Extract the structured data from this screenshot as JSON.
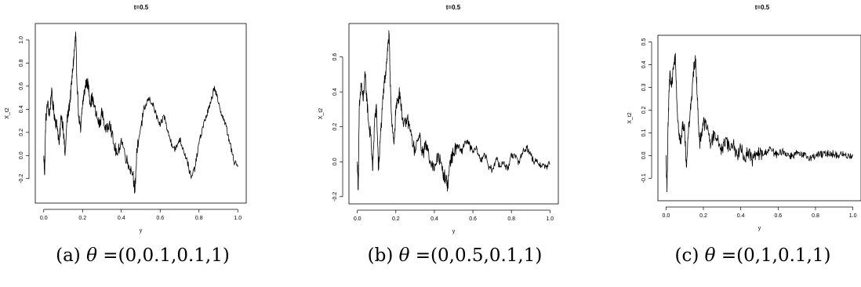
{
  "chart_data": [
    {
      "type": "line",
      "title": "t=0.5",
      "xlabel": "y",
      "ylabel": "X_t2",
      "caption_prefix": "(a)",
      "caption_theta": "θ",
      "caption_value": " =(0,0.1,0.1,1)",
      "xlim": [
        0,
        1
      ],
      "ylim": [
        -0.35,
        1.08
      ],
      "x_ticks": [
        "0.0",
        "0.2",
        "0.4",
        "0.6",
        "0.8",
        "1.0"
      ],
      "y_ticks": [
        "-0.2",
        "0.0",
        "0.2",
        "0.4",
        "0.6",
        "0.8",
        "1.0"
      ],
      "x_tick_values": [
        0,
        0.2,
        0.4,
        0.6,
        0.8,
        1.0
      ],
      "y_tick_values": [
        -0.2,
        0,
        0.2,
        0.4,
        0.6,
        0.8,
        1.0
      ],
      "noise": 0.055,
      "series": [
        {
          "x": [
            0.0,
            0.005,
            0.01,
            0.02,
            0.03,
            0.04,
            0.05,
            0.06,
            0.07,
            0.08,
            0.09,
            0.1,
            0.11,
            0.12,
            0.13,
            0.14,
            0.15,
            0.16,
            0.165,
            0.17,
            0.18,
            0.19,
            0.2,
            0.21,
            0.22,
            0.23,
            0.24,
            0.25,
            0.27,
            0.29,
            0.3,
            0.32,
            0.34,
            0.36,
            0.38,
            0.4,
            0.42,
            0.44,
            0.46,
            0.47,
            0.48,
            0.5,
            0.52,
            0.54,
            0.56,
            0.58,
            0.6,
            0.62,
            0.64,
            0.66,
            0.68,
            0.7,
            0.72,
            0.74,
            0.76,
            0.78,
            0.8,
            0.82,
            0.84,
            0.86,
            0.88,
            0.9,
            0.92,
            0.94,
            0.96,
            0.98,
            1.0
          ],
          "y": [
            0.0,
            -0.16,
            0.3,
            0.45,
            0.35,
            0.55,
            0.4,
            0.3,
            0.25,
            0.1,
            0.35,
            0.25,
            0.0,
            0.3,
            0.4,
            0.55,
            0.75,
            0.95,
            1.05,
            0.7,
            0.35,
            0.2,
            0.45,
            0.55,
            0.65,
            0.6,
            0.45,
            0.5,
            0.35,
            0.25,
            0.4,
            0.2,
            0.3,
            0.1,
            0.0,
            0.15,
            0.0,
            -0.1,
            -0.15,
            -0.32,
            0.05,
            0.25,
            0.4,
            0.5,
            0.45,
            0.35,
            0.25,
            0.35,
            0.2,
            0.1,
            0.05,
            0.15,
            0.05,
            -0.05,
            -0.2,
            -0.1,
            0.1,
            0.25,
            0.35,
            0.45,
            0.6,
            0.45,
            0.35,
            0.25,
            0.1,
            -0.05,
            -0.1
          ]
        }
      ]
    },
    {
      "type": "line",
      "title": "t=0.5",
      "xlabel": "y",
      "ylabel": "X_t2",
      "caption_prefix": "(b)",
      "caption_theta": "θ",
      "caption_value": " =(0,0.5,0.1,1)",
      "xlim": [
        0,
        1
      ],
      "ylim": [
        -0.2,
        0.75
      ],
      "x_ticks": [
        "0.0",
        "0.2",
        "0.4",
        "0.6",
        "0.8",
        "1.0"
      ],
      "y_ticks": [
        "-0.2",
        "0.0",
        "0.2",
        "0.4",
        "0.6"
      ],
      "x_tick_values": [
        0,
        0.2,
        0.4,
        0.6,
        0.8,
        1.0
      ],
      "y_tick_values": [
        -0.2,
        0,
        0.2,
        0.4,
        0.6
      ],
      "noise": 0.04,
      "series": [
        {
          "x": [
            0.0,
            0.005,
            0.01,
            0.02,
            0.03,
            0.04,
            0.05,
            0.06,
            0.07,
            0.08,
            0.09,
            0.1,
            0.11,
            0.12,
            0.13,
            0.14,
            0.15,
            0.16,
            0.165,
            0.17,
            0.18,
            0.19,
            0.2,
            0.21,
            0.22,
            0.23,
            0.24,
            0.26,
            0.28,
            0.3,
            0.32,
            0.34,
            0.36,
            0.38,
            0.4,
            0.42,
            0.44,
            0.46,
            0.47,
            0.48,
            0.5,
            0.52,
            0.54,
            0.56,
            0.58,
            0.6,
            0.62,
            0.64,
            0.66,
            0.68,
            0.7,
            0.72,
            0.74,
            0.76,
            0.78,
            0.8,
            0.82,
            0.84,
            0.86,
            0.88,
            0.9,
            0.92,
            0.94,
            0.96,
            0.98,
            1.0
          ],
          "y": [
            0.0,
            -0.16,
            0.3,
            0.45,
            0.35,
            0.5,
            0.35,
            0.2,
            0.15,
            -0.05,
            0.25,
            0.3,
            -0.05,
            0.15,
            0.3,
            0.45,
            0.55,
            0.68,
            0.72,
            0.5,
            0.2,
            0.1,
            0.3,
            0.35,
            0.4,
            0.3,
            0.2,
            0.25,
            0.15,
            0.05,
            0.15,
            0.05,
            0.1,
            0.0,
            -0.05,
            0.05,
            -0.05,
            -0.1,
            -0.14,
            0.0,
            0.05,
            0.1,
            0.05,
            0.12,
            0.1,
            0.05,
            0.08,
            0.0,
            0.05,
            -0.02,
            -0.05,
            0.02,
            -0.03,
            0.0,
            -0.05,
            0.05,
            0.02,
            0.0,
            0.06,
            0.08,
            0.04,
            0.0,
            -0.01,
            -0.02,
            -0.03,
            -0.01
          ]
        }
      ]
    },
    {
      "type": "line",
      "title": "t=0.5",
      "xlabel": "y",
      "ylabel": "X_t2",
      "caption_prefix": "(c)",
      "caption_theta": "θ",
      "caption_value": " =(0,1,0.1,1)",
      "xlim": [
        0,
        1
      ],
      "ylim": [
        -0.17,
        0.5
      ],
      "x_ticks": [
        "0.0",
        "0.2",
        "0.4",
        "0.6",
        "0.8",
        "1.0"
      ],
      "y_ticks": [
        "-0.1",
        "0.0",
        "0.1",
        "0.2",
        "0.3",
        "0.4",
        "0.5"
      ],
      "x_tick_values": [
        0,
        0.2,
        0.4,
        0.6,
        0.8,
        1.0
      ],
      "y_tick_values": [
        -0.1,
        0,
        0.1,
        0.2,
        0.3,
        0.4,
        0.5
      ],
      "noise": 0.03,
      "series": [
        {
          "x": [
            0.0,
            0.005,
            0.01,
            0.015,
            0.02,
            0.03,
            0.04,
            0.05,
            0.06,
            0.07,
            0.08,
            0.09,
            0.1,
            0.11,
            0.12,
            0.13,
            0.14,
            0.15,
            0.16,
            0.17,
            0.18,
            0.19,
            0.2,
            0.22,
            0.24,
            0.26,
            0.28,
            0.3,
            0.32,
            0.34,
            0.36,
            0.38,
            0.4,
            0.42,
            0.44,
            0.46,
            0.48,
            0.5,
            0.52,
            0.54,
            0.56,
            0.58,
            0.6,
            0.62,
            0.64,
            0.66,
            0.68,
            0.7,
            0.72,
            0.74,
            0.76,
            0.78,
            0.8,
            0.82,
            0.84,
            0.86,
            0.88,
            0.9,
            0.92,
            0.94,
            0.96,
            0.98,
            1.0
          ],
          "y": [
            0.0,
            -0.16,
            0.1,
            0.25,
            0.35,
            0.3,
            0.38,
            0.45,
            0.2,
            0.1,
            0.05,
            0.15,
            0.1,
            -0.05,
            0.1,
            0.2,
            0.28,
            0.4,
            0.42,
            0.2,
            0.05,
            0.1,
            0.15,
            0.12,
            0.05,
            0.1,
            0.06,
            0.02,
            0.08,
            0.03,
            0.05,
            0.0,
            0.03,
            -0.01,
            0.02,
            -0.02,
            0.0,
            0.01,
            0.0,
            0.02,
            0.03,
            0.01,
            0.0,
            0.02,
            0.01,
            0.0,
            0.0,
            0.01,
            0.0,
            0.0,
            -0.005,
            -0.01,
            0.0,
            0.005,
            0.005,
            0.01,
            0.01,
            0.005,
            0.0,
            0.005,
            0.0,
            0.0,
            0.0
          ]
        }
      ]
    }
  ]
}
